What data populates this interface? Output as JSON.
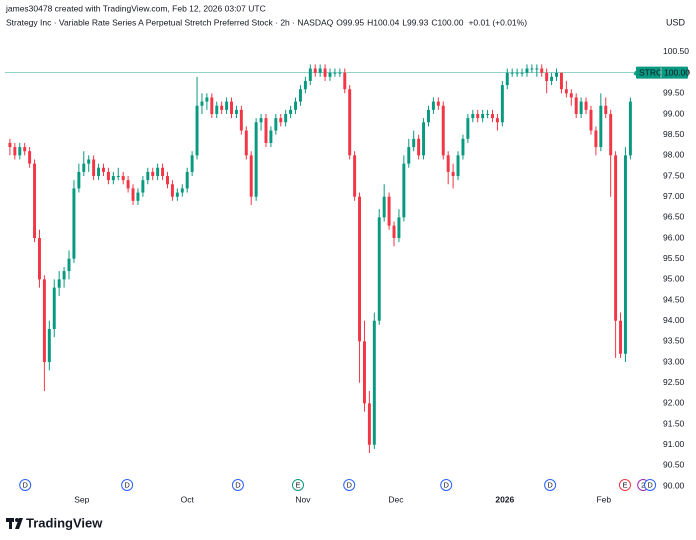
{
  "attribution": "james30478 created with TradingView.com, Feb 12, 2026 03:07 UTC",
  "footer_logo": "TradingView",
  "chart_data": {
    "type": "candlestick",
    "title": "Strategy Inc · Variable Rate Series A Perpetual Stretch Preferred Stock · 2h · NASDAQ",
    "ohlc_legend": [
      {
        "key": "O",
        "value": "99.95"
      },
      {
        "key": "H",
        "value": "100.04"
      },
      {
        "key": "L",
        "value": "99.93"
      },
      {
        "key": "C",
        "value": "100.00"
      }
    ],
    "change": "+0.01 (+0.01%)",
    "currency": "USD",
    "up_color": "#089981",
    "down_color": "#f23645",
    "last_price": {
      "symbol": "STRC",
      "value": 100,
      "label": "100.00"
    },
    "xlim": [
      -1,
      131
    ],
    "ylim": [
      89.76,
      100.79
    ],
    "grid": false,
    "xticks": [
      {
        "value": 14.6,
        "label": "Sep"
      },
      {
        "value": 36,
        "label": "Oct"
      },
      {
        "value": 59.5,
        "label": "Nov"
      },
      {
        "value": 78.4,
        "label": "Dec"
      },
      {
        "value": 100.5,
        "label": "2026"
      },
      {
        "value": 120.6,
        "label": "Feb"
      }
    ],
    "yticks": [
      {
        "value": 90,
        "label": "90.00"
      },
      {
        "value": 90.5,
        "label": "90.50"
      },
      {
        "value": 91,
        "label": "91.00"
      },
      {
        "value": 91.5,
        "label": "91.50"
      },
      {
        "value": 92,
        "label": "92.00"
      },
      {
        "value": 92.5,
        "label": "92.50"
      },
      {
        "value": 93,
        "label": "93.00"
      },
      {
        "value": 93.5,
        "label": "93.50"
      },
      {
        "value": 94,
        "label": "94.00"
      },
      {
        "value": 94.5,
        "label": "94.50"
      },
      {
        "value": 95,
        "label": "95.00"
      },
      {
        "value": 95.5,
        "label": "95.50"
      },
      {
        "value": 96,
        "label": "96.00"
      },
      {
        "value": 96.5,
        "label": "96.50"
      },
      {
        "value": 97,
        "label": "97.00"
      },
      {
        "value": 97.5,
        "label": "97.50"
      },
      {
        "value": 98,
        "label": "98.00"
      },
      {
        "value": 98.5,
        "label": "98.50"
      },
      {
        "value": 99,
        "label": "99.00"
      },
      {
        "value": 99.5,
        "label": "99.50"
      },
      {
        "value": 100,
        "label": "100.00"
      },
      {
        "value": 100.5,
        "label": "100.50"
      }
    ],
    "events": [
      {
        "x": 3.1,
        "label": "D",
        "color": "#2962ff"
      },
      {
        "x": 23.8,
        "label": "D",
        "color": "#2962ff"
      },
      {
        "x": 46.3,
        "label": "D",
        "color": "#2962ff"
      },
      {
        "x": 58.5,
        "label": "E",
        "color": "#089981"
      },
      {
        "x": 68.9,
        "label": "D",
        "color": "#2962ff"
      },
      {
        "x": 88.6,
        "label": "D",
        "color": "#2962ff"
      },
      {
        "x": 109.7,
        "label": "D",
        "color": "#2962ff"
      },
      {
        "x": 124.9,
        "label": "E",
        "color": "#f23645"
      },
      {
        "x": 128.6,
        "label": "2",
        "color": "#9c27b0"
      },
      {
        "x": 130,
        "label": "D",
        "color": "#2962ff"
      }
    ],
    "candles": [
      [
        98.3,
        98.4,
        98.0,
        98.2
      ],
      [
        98.2,
        98.3,
        97.9,
        98.0
      ],
      [
        98.0,
        98.3,
        97.9,
        98.2
      ],
      [
        98.2,
        98.3,
        98.0,
        98.1
      ],
      [
        98.1,
        98.2,
        97.7,
        97.8
      ],
      [
        97.8,
        97.9,
        95.9,
        96.0
      ],
      [
        96.0,
        96.2,
        94.8,
        95.0
      ],
      [
        95.0,
        95.1,
        92.3,
        93.0
      ],
      [
        93.0,
        94.0,
        92.8,
        93.8
      ],
      [
        93.8,
        95.0,
        93.6,
        94.8
      ],
      [
        94.8,
        95.2,
        94.6,
        95.0
      ],
      [
        95.0,
        95.3,
        94.8,
        95.2
      ],
      [
        95.2,
        95.7,
        95.0,
        95.5
      ],
      [
        95.5,
        97.4,
        95.4,
        97.2
      ],
      [
        97.2,
        97.8,
        97.1,
        97.6
      ],
      [
        97.6,
        98.1,
        97.5,
        97.8
      ],
      [
        97.8,
        98.0,
        97.6,
        97.9
      ],
      [
        97.9,
        98.0,
        97.4,
        97.5
      ],
      [
        97.5,
        97.8,
        97.4,
        97.7
      ],
      [
        97.7,
        97.8,
        97.5,
        97.6
      ],
      [
        97.6,
        97.7,
        97.3,
        97.4
      ],
      [
        97.4,
        97.6,
        97.3,
        97.5
      ],
      [
        97.5,
        97.7,
        97.4,
        97.5
      ],
      [
        97.5,
        97.6,
        97.3,
        97.4
      ],
      [
        97.4,
        97.5,
        97.1,
        97.2
      ],
      [
        97.2,
        97.3,
        96.8,
        96.9
      ],
      [
        96.9,
        97.2,
        96.8,
        97.1
      ],
      [
        97.1,
        97.5,
        97.0,
        97.4
      ],
      [
        97.4,
        97.7,
        97.3,
        97.6
      ],
      [
        97.6,
        97.7,
        97.4,
        97.5
      ],
      [
        97.5,
        97.8,
        97.4,
        97.7
      ],
      [
        97.7,
        97.8,
        97.4,
        97.5
      ],
      [
        97.5,
        97.6,
        97.2,
        97.3
      ],
      [
        97.3,
        97.4,
        96.9,
        97.0
      ],
      [
        97.0,
        97.2,
        96.9,
        97.1
      ],
      [
        97.1,
        97.3,
        97.0,
        97.2
      ],
      [
        97.2,
        97.7,
        97.1,
        97.6
      ],
      [
        97.6,
        98.1,
        97.5,
        98.0
      ],
      [
        98.0,
        99.9,
        97.9,
        99.2
      ],
      [
        99.2,
        99.5,
        99.0,
        99.3
      ],
      [
        99.3,
        99.5,
        99.1,
        99.4
      ],
      [
        99.4,
        99.5,
        98.9,
        99.0
      ],
      [
        99.0,
        99.3,
        98.9,
        99.2
      ],
      [
        99.2,
        99.3,
        99.0,
        99.1
      ],
      [
        99.1,
        99.4,
        99.0,
        99.3
      ],
      [
        99.3,
        99.4,
        98.9,
        99.0
      ],
      [
        99.0,
        99.2,
        98.9,
        99.1
      ],
      [
        99.1,
        99.2,
        98.5,
        98.6
      ],
      [
        98.6,
        98.7,
        97.9,
        98.0
      ],
      [
        98.0,
        98.1,
        96.8,
        97.0
      ],
      [
        97.0,
        98.9,
        96.9,
        98.8
      ],
      [
        98.8,
        99.0,
        98.6,
        98.9
      ],
      [
        98.9,
        99.0,
        98.2,
        98.3
      ],
      [
        98.3,
        98.7,
        98.2,
        98.6
      ],
      [
        98.6,
        99.0,
        98.5,
        98.9
      ],
      [
        98.9,
        99.0,
        98.7,
        98.8
      ],
      [
        98.8,
        99.1,
        98.7,
        99.0
      ],
      [
        99.0,
        99.2,
        98.9,
        99.1
      ],
      [
        99.1,
        99.4,
        99.0,
        99.3
      ],
      [
        99.3,
        99.7,
        99.2,
        99.6
      ],
      [
        99.6,
        99.9,
        99.5,
        99.8
      ],
      [
        99.8,
        100.2,
        99.7,
        100.1
      ],
      [
        100.1,
        100.2,
        99.9,
        100.0
      ],
      [
        100.0,
        100.2,
        99.9,
        100.1
      ],
      [
        100.1,
        100.2,
        99.8,
        99.9
      ],
      [
        99.9,
        100.1,
        99.8,
        100.0
      ],
      [
        100.0,
        100.1,
        99.9,
        100.0
      ],
      [
        100.0,
        100.1,
        99.9,
        100.0
      ],
      [
        100.0,
        100.1,
        99.5,
        99.6
      ],
      [
        99.6,
        99.7,
        97.9,
        98.0
      ],
      [
        98.0,
        98.1,
        96.9,
        97.0
      ],
      [
        97.0,
        97.1,
        92.5,
        93.5
      ],
      [
        93.5,
        94.0,
        91.8,
        92.0
      ],
      [
        92.0,
        92.3,
        90.8,
        91.0
      ],
      [
        91.0,
        94.2,
        90.9,
        94.0
      ],
      [
        94.0,
        96.7,
        93.9,
        96.5
      ],
      [
        96.5,
        97.3,
        96.4,
        97.0
      ],
      [
        97.0,
        97.1,
        96.2,
        96.3
      ],
      [
        96.3,
        96.4,
        95.8,
        96.0
      ],
      [
        96.0,
        96.7,
        95.9,
        96.5
      ],
      [
        96.5,
        98.0,
        96.4,
        97.8
      ],
      [
        97.8,
        98.4,
        97.7,
        98.2
      ],
      [
        98.2,
        98.6,
        98.1,
        98.4
      ],
      [
        98.4,
        98.5,
        97.9,
        98.0
      ],
      [
        98.0,
        98.9,
        97.9,
        98.8
      ],
      [
        98.8,
        99.2,
        98.7,
        99.1
      ],
      [
        99.1,
        99.4,
        99.0,
        99.3
      ],
      [
        99.3,
        99.4,
        99.1,
        99.2
      ],
      [
        99.2,
        99.3,
        97.9,
        98.0
      ],
      [
        98.0,
        98.1,
        97.3,
        97.6
      ],
      [
        97.6,
        97.8,
        97.2,
        97.5
      ],
      [
        97.5,
        98.1,
        97.4,
        98.0
      ],
      [
        98.0,
        98.5,
        97.9,
        98.4
      ],
      [
        98.4,
        99.0,
        98.3,
        98.9
      ],
      [
        98.9,
        99.1,
        98.8,
        99.0
      ],
      [
        99.0,
        99.1,
        98.8,
        98.9
      ],
      [
        98.9,
        99.1,
        98.8,
        99.0
      ],
      [
        99.0,
        99.1,
        98.9,
        99.0
      ],
      [
        99.0,
        99.1,
        98.8,
        98.9
      ],
      [
        98.9,
        99.0,
        98.6,
        98.8
      ],
      [
        98.8,
        99.8,
        98.7,
        99.7
      ],
      [
        99.7,
        100.1,
        99.6,
        100.0
      ],
      [
        100.0,
        100.1,
        99.9,
        100.0
      ],
      [
        100.0,
        100.1,
        99.9,
        100.0
      ],
      [
        100.0,
        100.1,
        99.9,
        100.0
      ],
      [
        100.0,
        100.2,
        99.9,
        100.1
      ],
      [
        100.1,
        100.2,
        100.0,
        100.1
      ],
      [
        100.1,
        100.2,
        99.9,
        100.1
      ],
      [
        100.1,
        100.2,
        99.9,
        100.0
      ],
      [
        100.0,
        100.1,
        99.5,
        99.8
      ],
      [
        99.8,
        100.0,
        99.7,
        99.9
      ],
      [
        99.9,
        100.1,
        99.8,
        100.0
      ],
      [
        100.0,
        100.0,
        99.5,
        99.6
      ],
      [
        99.6,
        99.8,
        99.4,
        99.5
      ],
      [
        99.5,
        99.6,
        99.2,
        99.4
      ],
      [
        99.4,
        99.5,
        98.9,
        99.0
      ],
      [
        99.0,
        99.4,
        98.9,
        99.3
      ],
      [
        99.3,
        99.4,
        99.0,
        99.1
      ],
      [
        99.1,
        99.2,
        98.5,
        98.6
      ],
      [
        98.6,
        98.7,
        98.0,
        98.2
      ],
      [
        98.2,
        99.5,
        98.1,
        99.2
      ],
      [
        99.2,
        99.4,
        98.9,
        99.0
      ],
      [
        99.0,
        99.1,
        97.0,
        98.0
      ],
      [
        98.0,
        98.1,
        93.1,
        94.0
      ],
      [
        94.0,
        94.2,
        93.1,
        93.2
      ],
      [
        93.2,
        98.2,
        93.0,
        98.0
      ],
      [
        98.0,
        99.4,
        97.9,
        99.3
      ],
      [
        99.95,
        100.04,
        99.93,
        100.0
      ]
    ]
  }
}
